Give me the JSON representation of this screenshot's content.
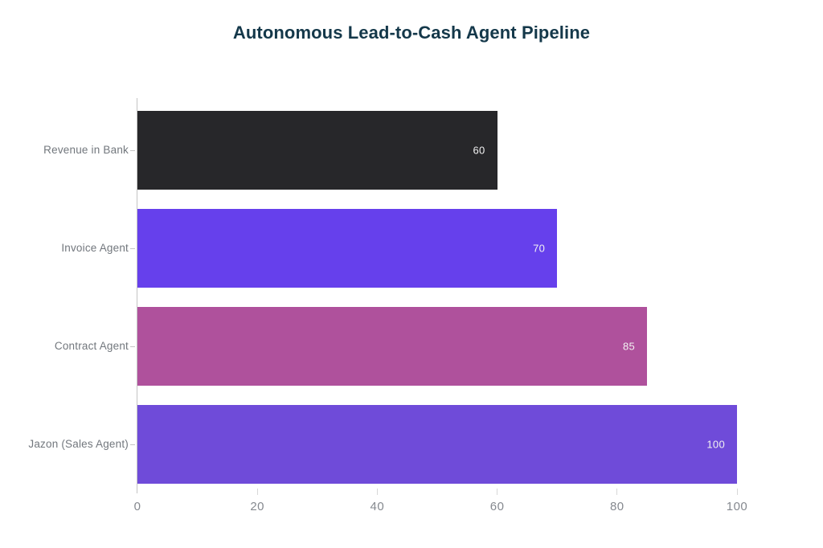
{
  "page": {
    "background_color": "#ffffff"
  },
  "chart_data": {
    "type": "bar",
    "orientation": "horizontal",
    "title": "Autonomous Lead-to-Cash Agent Pipeline",
    "title_color": "#14384a",
    "categories": [
      "Revenue in Bank",
      "Invoice Agent",
      "Contract Agent",
      "Jazon (Sales Agent)"
    ],
    "values": [
      60,
      70,
      85,
      100
    ],
    "bar_colors": [
      "#27272a",
      "#6640ec",
      "#af519c",
      "#6f4bd9"
    ],
    "value_labels": [
      "60",
      "70",
      "85",
      "100"
    ],
    "value_label_color": "#f2f2f2",
    "x_ticks": [
      0,
      20,
      40,
      60,
      80,
      100
    ],
    "xlim": [
      0,
      100
    ],
    "xlabel": "",
    "ylabel": "",
    "grid": false,
    "legend": false,
    "axis_line_color": "#c4c4c4",
    "tick_mark_color": "#d8d8d8",
    "category_label_color": "#72777d",
    "tick_label_color": "#85898f"
  }
}
